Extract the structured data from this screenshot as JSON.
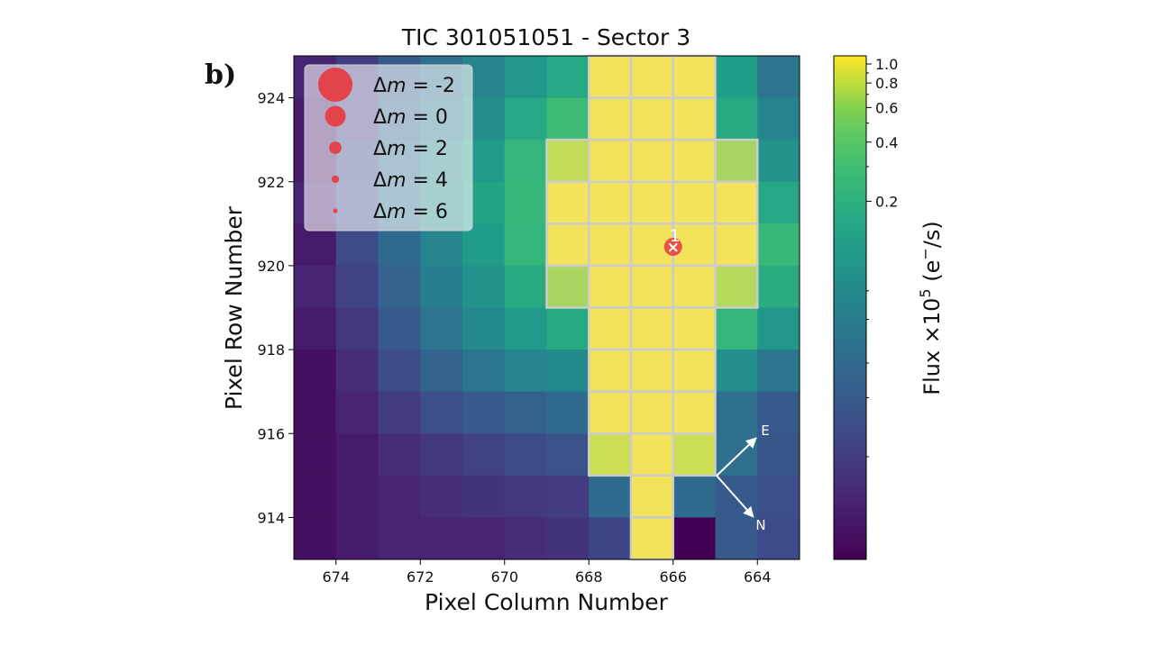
{
  "panel_label": "b)",
  "chart_data": {
    "type": "heatmap",
    "title": "TIC 301051051 - Sector 3",
    "xlabel": "Pixel Column Number",
    "ylabel": "Pixel Row Number",
    "colorbar_label_main": "Flux ×10",
    "colorbar_label_exp": "5",
    "colorbar_label_unit": " (e",
    "colorbar_label_sup": "−",
    "colorbar_label_tail": "/s)",
    "colorbar_scale": "log",
    "colorscale": "viridis",
    "columns": [
      674.5,
      673.5,
      672.5,
      671.5,
      670.5,
      669.5,
      668.5,
      667.5,
      666.5,
      665.5,
      664.5,
      663.5
    ],
    "rows": [
      924.5,
      923.5,
      922.5,
      921.5,
      920.5,
      919.5,
      918.5,
      917.5,
      916.5,
      915.5,
      914.5,
      913.5
    ],
    "x_ticks": [
      "674",
      "672",
      "670",
      "668",
      "666",
      "664"
    ],
    "x_tick_values": [
      674,
      672,
      670,
      668,
      666,
      664
    ],
    "y_ticks": [
      "924",
      "922",
      "920",
      "918",
      "916",
      "914"
    ],
    "y_tick_values": [
      924,
      922,
      920,
      918,
      916,
      914
    ],
    "xlim": [
      675,
      663
    ],
    "ylim": [
      913,
      925
    ],
    "colorbar_ticks": [
      "1.0",
      "0.8",
      "0.6",
      "0.4",
      "0.2"
    ],
    "colorbar_tick_values": [
      1.0,
      0.8,
      0.6,
      0.4,
      0.2
    ],
    "colorbar_range": [
      0.003,
      1.1
    ],
    "flux": [
      [
        0.006,
        0.01,
        0.02,
        0.035,
        0.06,
        0.1,
        0.16,
        1.0,
        1.0,
        1.0,
        0.12,
        0.04
      ],
      [
        0.005,
        0.01,
        0.025,
        0.045,
        0.08,
        0.16,
        0.28,
        1.0,
        1.0,
        1.0,
        0.17,
        0.06
      ],
      [
        0.005,
        0.012,
        0.03,
        0.06,
        0.11,
        0.24,
        0.6,
        1.0,
        1.0,
        1.0,
        0.35,
        0.09
      ],
      [
        0.006,
        0.014,
        0.035,
        0.07,
        0.14,
        0.26,
        1.0,
        1.0,
        1.0,
        1.0,
        1.0,
        0.16
      ],
      [
        0.005,
        0.013,
        0.03,
        0.06,
        0.12,
        0.24,
        1.0,
        1.0,
        1.0,
        1.0,
        1.0,
        0.26
      ],
      [
        0.006,
        0.011,
        0.025,
        0.05,
        0.09,
        0.17,
        0.38,
        1.0,
        1.0,
        1.0,
        0.5,
        0.18
      ],
      [
        0.005,
        0.009,
        0.02,
        0.04,
        0.07,
        0.11,
        0.17,
        1.0,
        1.0,
        1.0,
        0.24,
        0.1
      ],
      [
        0.004,
        0.007,
        0.014,
        0.025,
        0.04,
        0.06,
        0.07,
        1.0,
        1.0,
        1.0,
        0.08,
        0.04
      ],
      [
        0.004,
        0.006,
        0.01,
        0.015,
        0.02,
        0.025,
        0.03,
        1.0,
        1.0,
        1.0,
        0.035,
        0.02
      ],
      [
        0.004,
        0.005,
        0.007,
        0.009,
        0.011,
        0.013,
        0.017,
        0.7,
        1.0,
        0.7,
        0.035,
        0.018
      ],
      [
        0.004,
        0.005,
        0.006,
        0.007,
        0.008,
        0.009,
        0.01,
        0.03,
        1.0,
        0.03,
        0.02,
        0.015
      ],
      [
        0.004,
        0.005,
        0.006,
        0.006,
        0.006,
        0.007,
        0.008,
        0.012,
        1.0,
        0.003,
        0.02,
        0.013
      ]
    ],
    "aperture_mask": [
      [
        false,
        false,
        false,
        false,
        false,
        false,
        false,
        true,
        true,
        true,
        false,
        false
      ],
      [
        false,
        false,
        false,
        false,
        false,
        false,
        false,
        true,
        true,
        true,
        false,
        false
      ],
      [
        false,
        false,
        false,
        false,
        false,
        false,
        true,
        true,
        true,
        true,
        true,
        false
      ],
      [
        false,
        false,
        false,
        false,
        false,
        false,
        true,
        true,
        true,
        true,
        true,
        false
      ],
      [
        false,
        false,
        false,
        false,
        false,
        false,
        true,
        true,
        true,
        true,
        true,
        false
      ],
      [
        false,
        false,
        false,
        false,
        false,
        false,
        true,
        true,
        true,
        true,
        true,
        false
      ],
      [
        false,
        false,
        false,
        false,
        false,
        false,
        false,
        true,
        true,
        true,
        false,
        false
      ],
      [
        false,
        false,
        false,
        false,
        false,
        false,
        false,
        true,
        true,
        true,
        false,
        false
      ],
      [
        false,
        false,
        false,
        false,
        false,
        false,
        false,
        true,
        true,
        true,
        false,
        false
      ],
      [
        false,
        false,
        false,
        false,
        false,
        false,
        false,
        true,
        true,
        true,
        false,
        false
      ],
      [
        false,
        false,
        false,
        false,
        false,
        false,
        false,
        false,
        true,
        false,
        false,
        false
      ],
      [
        false,
        false,
        false,
        false,
        false,
        false,
        false,
        false,
        true,
        false,
        false,
        false
      ]
    ],
    "aperture_overlay_color": "#f2e35e",
    "aperture_edge_color": "#cccccc",
    "target_star": {
      "label": "1",
      "x": 666.0,
      "y": 920.45
    },
    "marker_color": "#e8383d",
    "legend": {
      "position": "upper left",
      "entries": [
        {
          "prefix": "Δ",
          "var": "m",
          "text": " =  -2"
        },
        {
          "prefix": "Δ",
          "var": "m",
          "text": " =  0"
        },
        {
          "prefix": "Δ",
          "var": "m",
          "text": " =  2"
        },
        {
          "prefix": "Δ",
          "var": "m",
          "text": " =  4"
        },
        {
          "prefix": "Δ",
          "var": "m",
          "text": " =  6"
        }
      ],
      "delta_m": [
        -2,
        0,
        2,
        4,
        6
      ]
    },
    "compass": {
      "east_label": "E",
      "north_label": "N"
    }
  }
}
